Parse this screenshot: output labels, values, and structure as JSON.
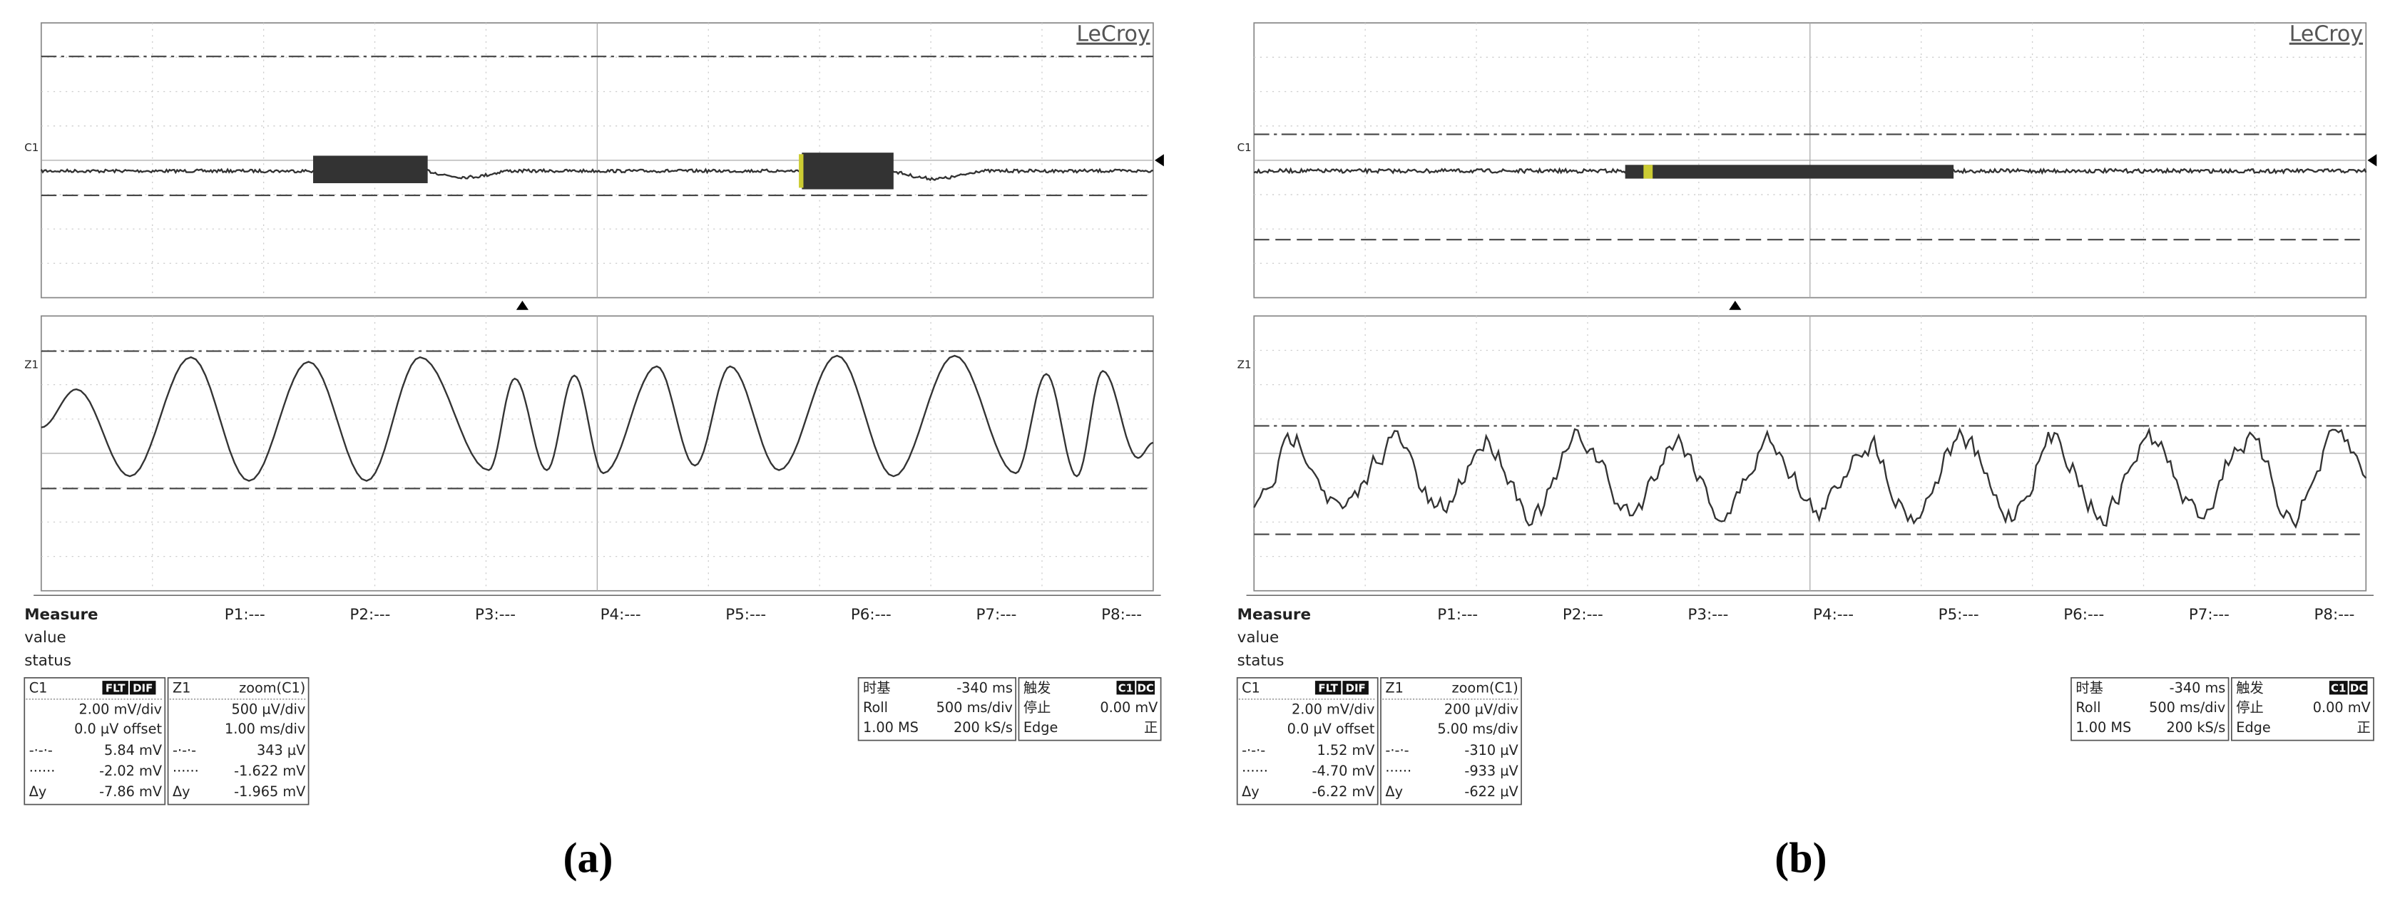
{
  "panels": [
    {
      "brand": "LeCroy",
      "upper_channel": "C1",
      "lower_channel": "Z1",
      "measure": {
        "title": "Measure",
        "rows": [
          "value",
          "status"
        ],
        "params": [
          "P1:---",
          "P2:---",
          "P3:---",
          "P4:---",
          "P5:---",
          "P6:---",
          "P7:---",
          "P8:---"
        ]
      },
      "channel_box": {
        "name": "C1",
        "badges": [
          "FLT",
          "DIF"
        ],
        "scale": "2.00 mV/div",
        "offset": "0.0 µV offset",
        "rows": [
          [
            "-·-·-",
            "5.84 mV"
          ],
          [
            "······",
            "-2.02 mV"
          ],
          [
            "Δy",
            "-7.86 mV"
          ]
        ]
      },
      "zoom_box": {
        "name": "Z1",
        "source": "zoom(C1)",
        "scale": "500 µV/div",
        "timescale": "1.00 ms/div",
        "rows": [
          [
            "-·-·-",
            "343 µV"
          ],
          [
            "······",
            "-1.622 mV"
          ],
          [
            "Δy",
            "-1.965 mV"
          ]
        ]
      },
      "timebase_box": {
        "rows": [
          [
            "时基",
            "-340 ms"
          ],
          [
            "Roll",
            "500 ms/div"
          ],
          [
            "1.00 MS",
            "200 kS/s"
          ]
        ]
      },
      "trigger_box": {
        "label": "触发",
        "badges": [
          "C1",
          "DC"
        ],
        "rows": [
          [
            "停止",
            "0.00 mV"
          ],
          [
            "Edge",
            "正"
          ]
        ]
      },
      "caption": "(a)"
    },
    {
      "brand": "LeCroy",
      "upper_channel": "C1",
      "lower_channel": "Z1",
      "measure": {
        "title": "Measure",
        "rows": [
          "value",
          "status"
        ],
        "params": [
          "P1:---",
          "P2:---",
          "P3:---",
          "P4:---",
          "P5:---",
          "P6:---",
          "P7:---",
          "P8:---"
        ]
      },
      "channel_box": {
        "name": "C1",
        "badges": [
          "FLT",
          "DIF"
        ],
        "scale": "2.00 mV/div",
        "offset": "0.0 µV offset",
        "rows": [
          [
            "-·-·-",
            "1.52 mV"
          ],
          [
            "······",
            "-4.70 mV"
          ],
          [
            "Δy",
            "-6.22 mV"
          ]
        ]
      },
      "zoom_box": {
        "name": "Z1",
        "source": "zoom(C1)",
        "scale": "200 µV/div",
        "timescale": "5.00 ms/div",
        "rows": [
          [
            "-·-·-",
            "-310 µV"
          ],
          [
            "······",
            "-933 µV"
          ],
          [
            "Δy",
            "-622 µV"
          ]
        ]
      },
      "timebase_box": {
        "rows": [
          [
            "时基",
            "-340 ms"
          ],
          [
            "Roll",
            "500 ms/div"
          ],
          [
            "1.00 MS",
            "200 kS/s"
          ]
        ]
      },
      "trigger_box": {
        "label": "触发",
        "badges": [
          "C1",
          "DC"
        ],
        "rows": [
          [
            "停止",
            "0.00 mV"
          ],
          [
            "Edge",
            "正"
          ]
        ]
      },
      "caption": "(b)"
    }
  ]
}
